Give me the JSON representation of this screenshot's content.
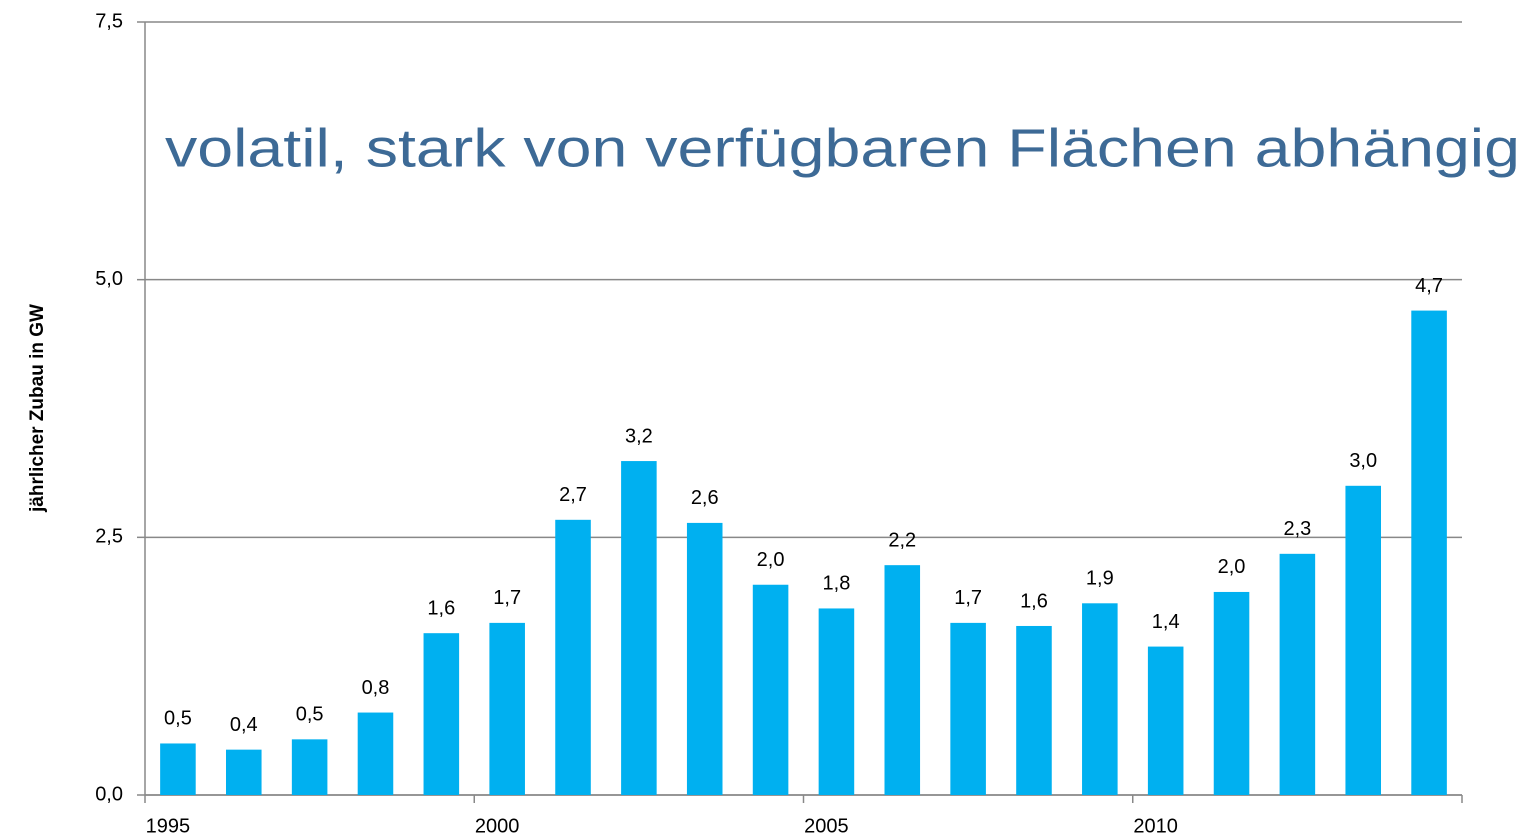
{
  "chart_data": {
    "type": "bar",
    "annotation": "volatil, stark von verfügbaren Flächen abhängig",
    "ylabel": "jährlicher Zubau in GW",
    "categories": [
      "1995",
      null,
      null,
      null,
      null,
      "2000",
      null,
      null,
      null,
      null,
      "2005",
      null,
      null,
      null,
      null,
      "2010",
      null,
      null,
      null,
      null
    ],
    "values": [
      0.5,
      0.44,
      0.54,
      0.8,
      1.57,
      1.67,
      2.67,
      3.24,
      2.64,
      2.04,
      1.81,
      2.23,
      1.67,
      1.64,
      1.86,
      1.44,
      1.97,
      2.34,
      3.0,
      4.7
    ],
    "value_labels": [
      "0,5",
      "0,4",
      "0,5",
      "0,8",
      "1,6",
      "1,7",
      "2,7",
      "3,2",
      "2,6",
      "2,0",
      "1,8",
      "2,2",
      "1,7",
      "1,6",
      "1,9",
      "1,4",
      "2,0",
      "2,3",
      "3,0",
      "4,7"
    ],
    "color": "#00b0f0",
    "ylim": [
      0,
      7.5
    ],
    "yticks": [
      {
        "value": 0,
        "label": "0,0"
      },
      {
        "value": 2.5,
        "label": "2,5"
      },
      {
        "value": 5,
        "label": "5,0"
      },
      {
        "value": 7.5,
        "label": "7,5"
      }
    ],
    "grid": true
  }
}
